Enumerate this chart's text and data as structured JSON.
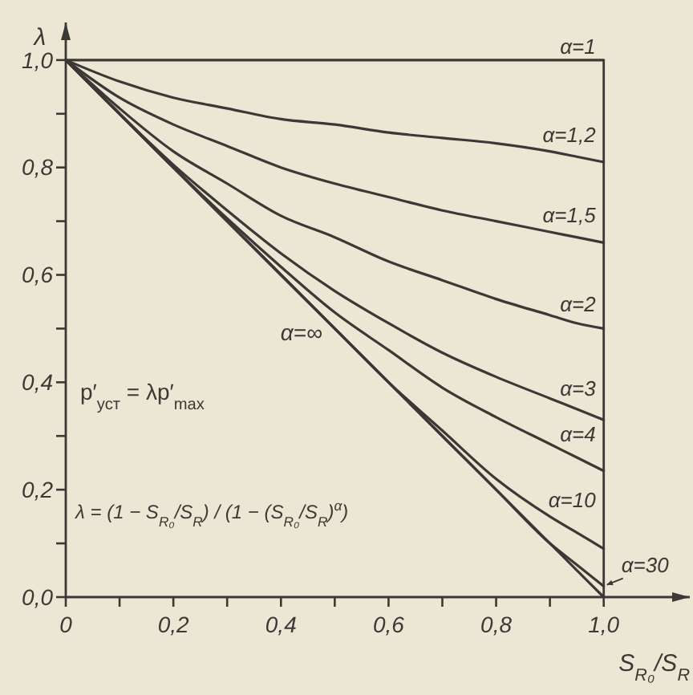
{
  "chart_data": {
    "type": "line",
    "xlabel": "S$_{R₀}$/S$_{R}$",
    "ylabel": "λ",
    "x": [
      0,
      0.1,
      0.2,
      0.3,
      0.4,
      0.5,
      0.6,
      0.7,
      0.8,
      0.9,
      0.95,
      1
    ],
    "series": [
      {
        "name": "α=1",
        "color": "#3a3935",
        "values": [
          1,
          1,
          1,
          1,
          1,
          1,
          1,
          1,
          1,
          1,
          1,
          1
        ]
      },
      {
        "name": "α=1,2",
        "color": "#3a3935",
        "values": [
          1,
          0.96,
          0.93,
          0.91,
          0.89,
          0.88,
          0.865,
          0.855,
          0.845,
          0.83,
          0.82,
          0.81
        ]
      },
      {
        "name": "α=1,5",
        "color": "#3a3935",
        "values": [
          1,
          0.93,
          0.88,
          0.84,
          0.8,
          0.77,
          0.745,
          0.72,
          0.7,
          0.68,
          0.67,
          0.66
        ]
      },
      {
        "name": "α=2",
        "color": "#3a3935",
        "values": [
          1,
          0.91,
          0.83,
          0.77,
          0.71,
          0.67,
          0.625,
          0.59,
          0.555,
          0.525,
          0.51,
          0.5
        ]
      },
      {
        "name": "α=3",
        "color": "#3a3935",
        "values": [
          1,
          0.9,
          0.805,
          0.72,
          0.64,
          0.57,
          0.51,
          0.455,
          0.41,
          0.37,
          0.35,
          0.33
        ]
      },
      {
        "name": "α=4",
        "color": "#3a3935",
        "values": [
          1,
          0.9,
          0.8,
          0.705,
          0.615,
          0.53,
          0.46,
          0.39,
          0.335,
          0.285,
          0.26,
          0.235
        ]
      },
      {
        "name": "α=10",
        "color": "#3a3935",
        "values": [
          1,
          0.9,
          0.8,
          0.7,
          0.6,
          0.5,
          0.4,
          0.31,
          0.22,
          0.15,
          0.12,
          0.09
        ]
      },
      {
        "name": "α=30",
        "color": "#3a3935",
        "values": [
          1,
          0.9,
          0.8,
          0.7,
          0.6,
          0.5,
          0.4,
          0.3,
          0.2,
          0.1,
          0.06,
          0.02
        ]
      },
      {
        "name": "α=∞",
        "color": "#3a3935",
        "values": [
          1,
          0.9,
          0.8,
          0.7,
          0.6,
          0.5,
          0.4,
          0.3,
          0.2,
          0.1,
          0.05,
          0
        ]
      }
    ],
    "xlim": [
      0,
      1.16
    ],
    "ylim": [
      0,
      1.07
    ],
    "xticks": [
      0,
      {
        "value": 0.1,
        "label": null
      },
      {
        "value": 0.2,
        "label": "0,2"
      },
      {
        "value": 0.3,
        "label": null
      },
      {
        "value": 0.4,
        "label": "0,4"
      },
      {
        "value": 0.5,
        "label": null
      },
      {
        "value": 0.6,
        "label": "0,6"
      },
      {
        "value": 0.7,
        "label": null
      },
      {
        "value": 0.8,
        "label": "0,8"
      },
      {
        "value": 0.9,
        "label": null
      },
      {
        "value": 1,
        "label": "1,0"
      }
    ],
    "yticks": [
      {
        "value": 0,
        "label": "0,0"
      },
      {
        "value": 0.1,
        "label": null
      },
      {
        "value": 0.2,
        "label": "0,2"
      },
      {
        "value": 0.3,
        "label": null
      },
      {
        "value": 0.4,
        "label": "0,4"
      },
      {
        "value": 0.5,
        "label": null
      },
      {
        "value": 0.6,
        "label": "0,6"
      },
      {
        "value": 0.7,
        "label": null
      },
      {
        "value": 0.8,
        "label": "0,8"
      },
      {
        "value": 0.9,
        "label": null
      },
      {
        "value": 1,
        "label": "1,0"
      }
    ],
    "ref_lines": [
      {
        "axis": "x",
        "value": 1,
        "color": "#3a3935"
      }
    ],
    "annotations": [
      "p′$_{уст}$ = λp′$_{max}$",
      "λ = (1 − S$_{R₀}$/S$_{R}$) / (1 − (S$_{R₀}$/S$_{R}$)$^{α}$)"
    ]
  }
}
